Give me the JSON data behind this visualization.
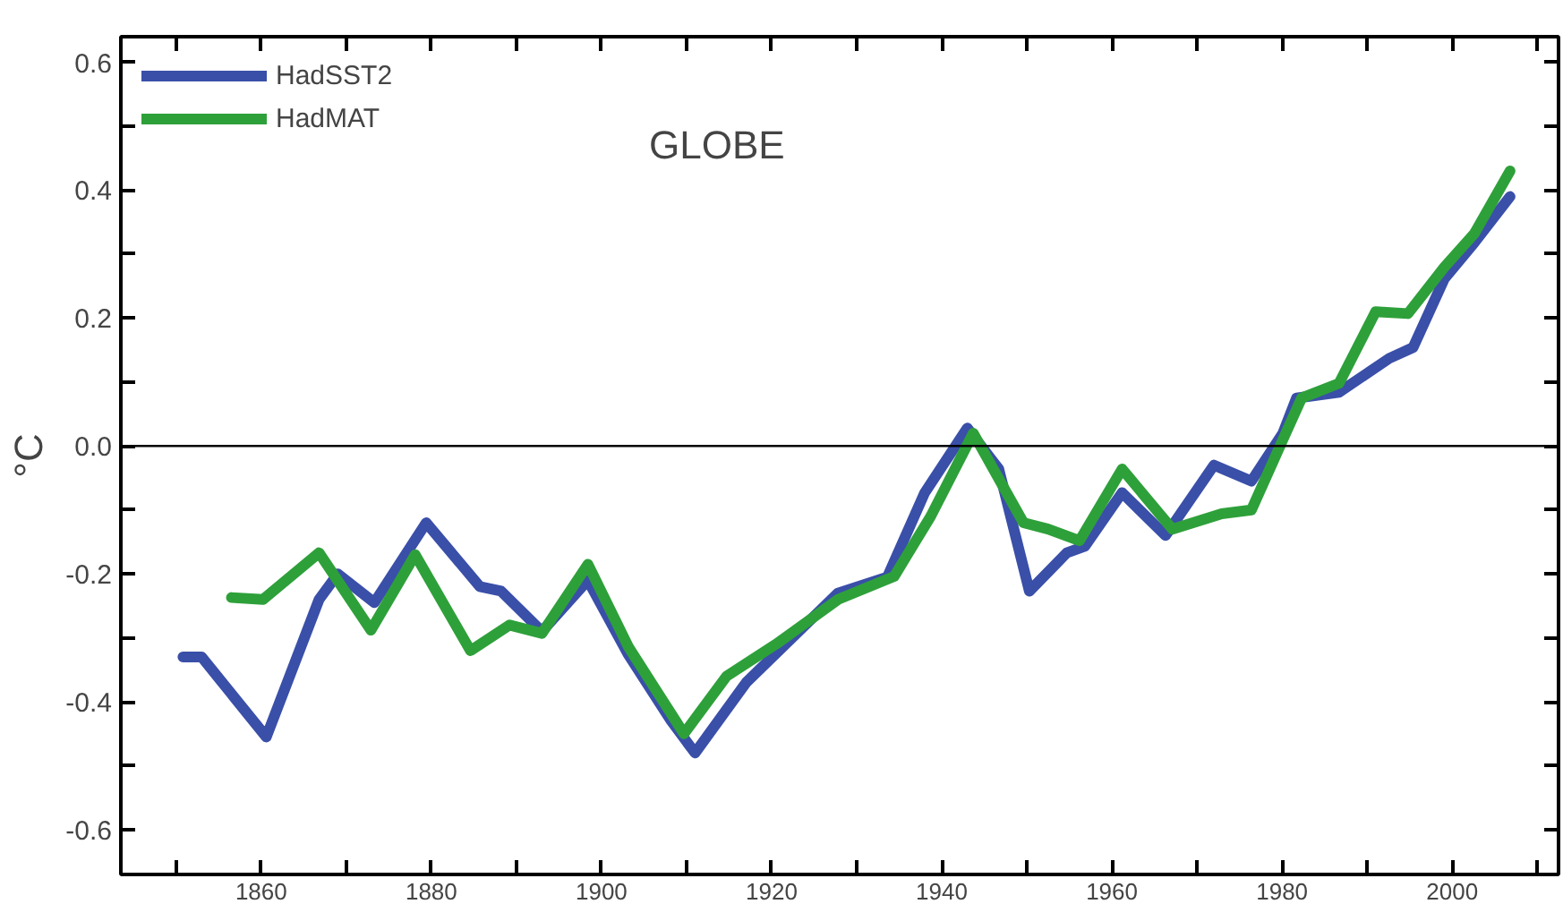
{
  "chart_data": {
    "type": "line",
    "title": "GLOBE",
    "ylabel": "°C",
    "xlim": [
      1843.5,
      2012.5
    ],
    "ylim": [
      -0.67,
      0.64
    ],
    "xticks": [
      {
        "value": 1850,
        "label": null
      },
      1860,
      {
        "value": 1870,
        "label": null
      },
      1880,
      {
        "value": 1890,
        "label": null
      },
      1900,
      {
        "value": 1910,
        "label": null
      },
      1920,
      {
        "value": 1930,
        "label": null
      },
      1940,
      {
        "value": 1950,
        "label": null
      },
      1960,
      {
        "value": 1970,
        "label": null
      },
      1980,
      {
        "value": 1990,
        "label": null
      },
      2000,
      {
        "value": 2010,
        "label": null
      }
    ],
    "yticks": [
      -0.6,
      {
        "value": -0.5,
        "label": null
      },
      -0.4,
      {
        "value": -0.3,
        "label": null
      },
      -0.2,
      {
        "value": -0.1,
        "label": null
      },
      {
        "value": 0,
        "label": "0.0"
      },
      {
        "value": 0.1,
        "label": null
      },
      0.2,
      {
        "value": 0.3,
        "label": null
      },
      0.4,
      {
        "value": 0.5,
        "label": null
      },
      0.6
    ],
    "grid": false,
    "legend": "top left",
    "line_style": "solid",
    "marker": "none",
    "ref_lines": [
      {
        "axis": "y",
        "value": 0,
        "color": "#000000"
      }
    ],
    "series": [
      {
        "name": "HadSST2",
        "color": "#3a4fa8",
        "x": [
          1850.8,
          1853,
          1860.6,
          1866.8,
          1869,
          1873.3,
          1879.4,
          1885.7,
          1888.2,
          1893,
          1898.4,
          1903.1,
          1908.2,
          1911,
          1917,
          1922.4,
          1927.8,
          1933.6,
          1938,
          1943,
          1946.7,
          1950.3,
          1954.7,
          1956.8,
          1961.2,
          1966.3,
          1972,
          1976.4,
          1980.1,
          1981.7,
          1986.7,
          1992.6,
          1995.4,
          1999.1,
          2002.6,
          2006.8
        ],
        "values": [
          -0.33,
          -0.33,
          -0.455,
          -0.24,
          -0.2,
          -0.245,
          -0.12,
          -0.22,
          -0.227,
          -0.29,
          -0.21,
          -0.325,
          -0.43,
          -0.48,
          -0.37,
          -0.3,
          -0.23,
          -0.205,
          -0.073,
          0.028,
          -0.036,
          -0.227,
          -0.167,
          -0.157,
          -0.073,
          -0.14,
          -0.03,
          -0.055,
          0.02,
          0.075,
          0.084,
          0.137,
          0.154,
          0.262,
          0.318,
          0.39
        ]
      },
      {
        "name": "HadMAT",
        "color": "#2ea03a",
        "x": [
          1856.5,
          1860.2,
          1866.8,
          1872.9,
          1878.1,
          1884.6,
          1889.2,
          1893,
          1898.4,
          1903.2,
          1909.7,
          1914.7,
          1920.5,
          1927.8,
          1934.4,
          1938.7,
          1943.7,
          1949.6,
          1952.5,
          1956.2,
          1961.2,
          1967.1,
          1972.9,
          1976.4,
          1980.1,
          1982.3,
          1986.7,
          1991,
          1994.8,
          1999.1,
          2002.6,
          2006.8
        ],
        "values": [
          -0.237,
          -0.24,
          -0.167,
          -0.288,
          -0.17,
          -0.32,
          -0.28,
          -0.293,
          -0.185,
          -0.315,
          -0.45,
          -0.36,
          -0.31,
          -0.24,
          -0.204,
          -0.11,
          0.02,
          -0.12,
          -0.13,
          -0.148,
          -0.036,
          -0.13,
          -0.106,
          -0.1,
          0.01,
          0.075,
          0.098,
          0.21,
          0.207,
          0.28,
          0.332,
          0.43
        ]
      }
    ]
  }
}
